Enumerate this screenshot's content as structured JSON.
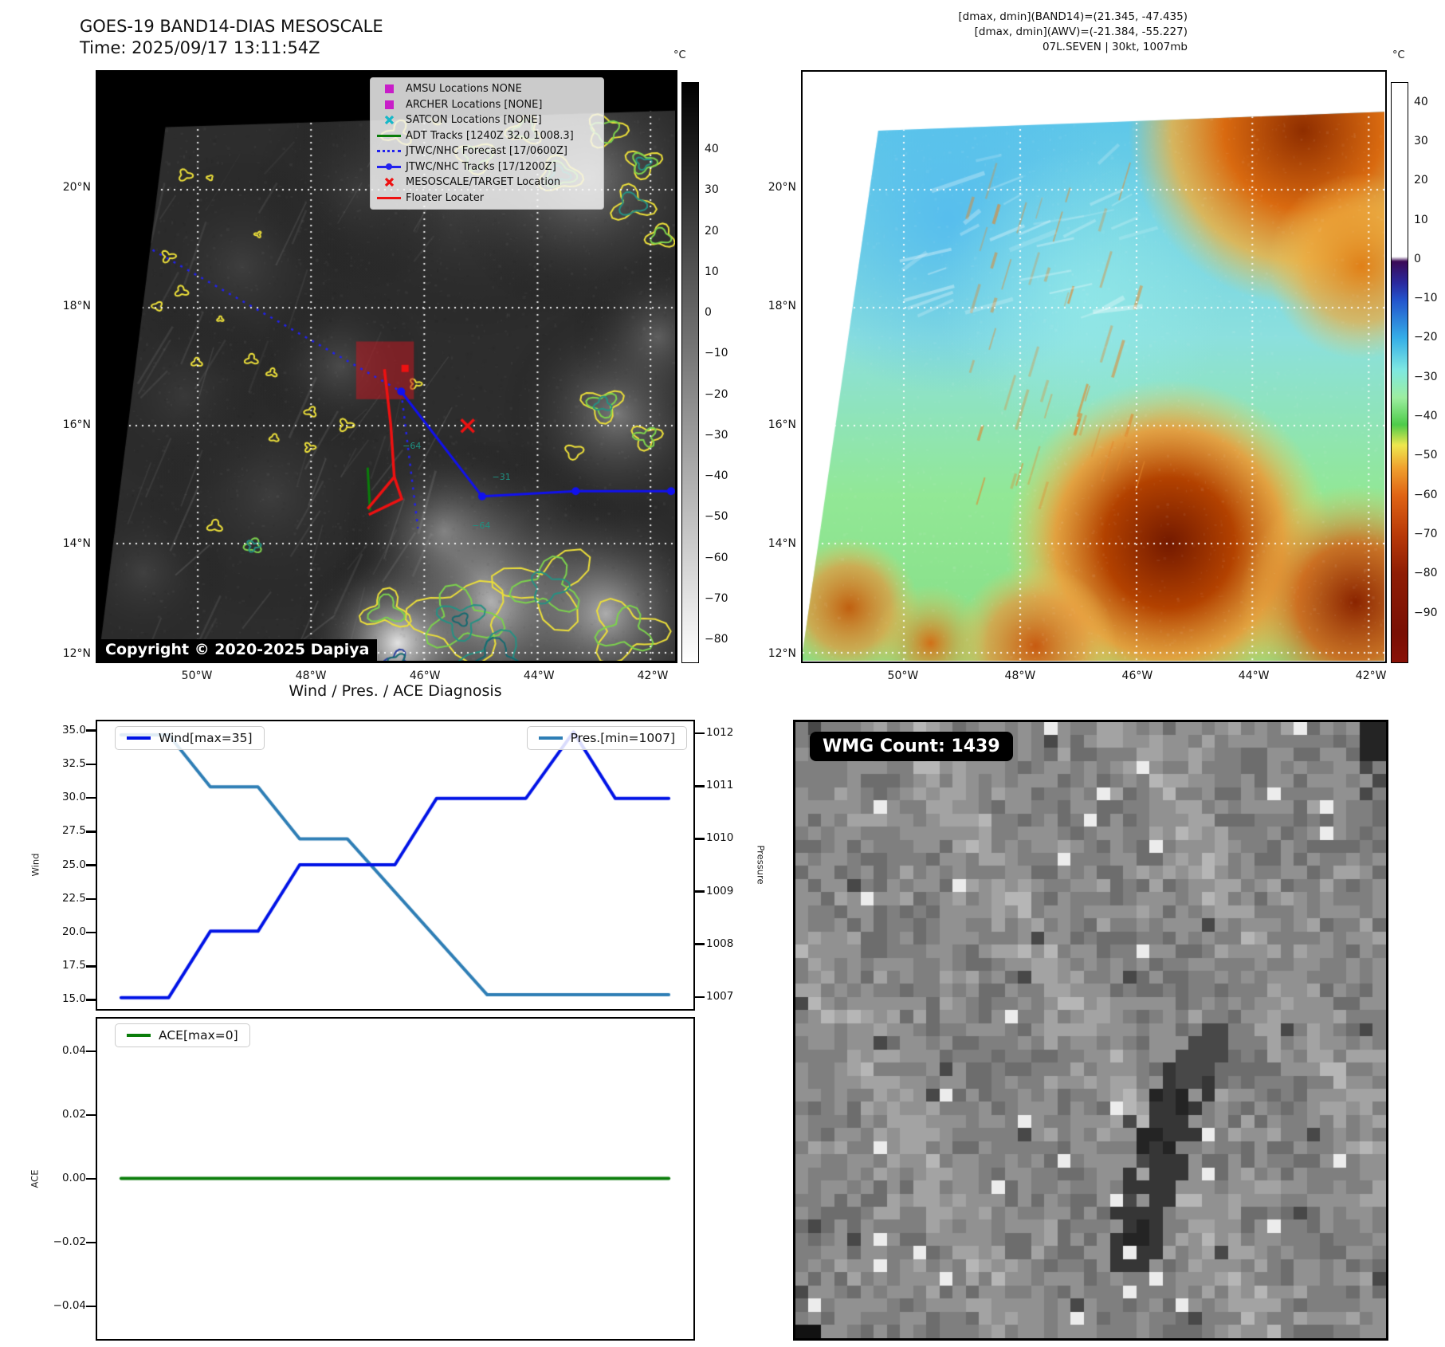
{
  "figure": {
    "title_line1": "GOES-19 BAND14-DIAS MESOSCALE",
    "title_line2": "Time: 2025/09/17 13:11:54Z",
    "info_line1": "[dmax, dmin](BAND14)=(21.345, -47.435)",
    "info_line2": "[dmax, dmin](AWV)=(-21.384, -55.227)",
    "info_line3": "07L.SEVEN | 30kt, 1007mb"
  },
  "band14_map": {
    "lat_ticks": [
      "20°N",
      "18°N",
      "16°N",
      "14°N",
      "12°N"
    ],
    "lon_ticks": [
      "50°W",
      "48°W",
      "46°W",
      "44°W",
      "42°W"
    ],
    "copyright": "Copyright © 2020-2025 Dapiya",
    "contour_labels": [
      {
        "text": "−64",
        "fx": 0.545,
        "fy": 0.637
      },
      {
        "text": "−64",
        "fx": 0.665,
        "fy": 0.772
      },
      {
        "text": "−31",
        "fx": 0.7,
        "fy": 0.69
      }
    ],
    "legend": [
      {
        "label": "AMSU Locations NONE",
        "marker": "square",
        "color": "#c81ec8"
      },
      {
        "label": "ARCHER Locations [NONE]",
        "marker": "square",
        "color": "#c81ec8"
      },
      {
        "label": "SATCON Locations [NONE]",
        "marker": "x",
        "color": "#16b8c8"
      },
      {
        "label": "ADT Tracks [1240Z 32.0 1008.3]",
        "marker": "line",
        "color": "#0a7d0a"
      },
      {
        "label": "JTWC/NHC Forecast [17/0600Z]",
        "marker": "dotted",
        "color": "#2222ee"
      },
      {
        "label": "JTWC/NHC Tracks [17/1200Z]",
        "marker": "line-dot",
        "color": "#2222ee"
      },
      {
        "label": "MESOSCALE/TARGET Location",
        "marker": "x",
        "color": "#ee1111"
      },
      {
        "label": "Floater Locater",
        "marker": "line",
        "color": "#ee1111"
      }
    ],
    "colorbar": {
      "unit": "°C",
      "ticks": [
        "40",
        "30",
        "20",
        "10",
        "0",
        "−10",
        "−20",
        "−30",
        "−40",
        "−50",
        "−60",
        "−70",
        "−80"
      ]
    }
  },
  "awv_map": {
    "lat_ticks": [
      "20°N",
      "18°N",
      "16°N",
      "14°N",
      "12°N"
    ],
    "lon_ticks": [
      "50°W",
      "48°W",
      "46°W",
      "44°W",
      "42°W"
    ],
    "colorbar": {
      "unit": "°C",
      "ticks": [
        "40",
        "30",
        "20",
        "10",
        "0",
        "−10",
        "−20",
        "−30",
        "−40",
        "−50",
        "−60",
        "−70",
        "−80",
        "−90"
      ]
    }
  },
  "wmg_panel": {
    "count_label": "WMG Count: 1439"
  },
  "chart_data": [
    {
      "type": "line",
      "title": "Wind / Pres. / ACE Diagnosis",
      "ylabel": "Wind",
      "y2label": "Pressure",
      "ylim": [
        14.2,
        35.8
      ],
      "y2lim": [
        1006.74,
        1012.26
      ],
      "yticks": [
        "35.0",
        "32.5",
        "30.0",
        "27.5",
        "25.0",
        "22.5",
        "20.0",
        "17.5",
        "15.0"
      ],
      "y2ticks": [
        "1012",
        "1011",
        "1010",
        "1009",
        "1008",
        "1007"
      ],
      "grid": false,
      "x_axis_labels": "none",
      "series": [
        {
          "name": "Wind[max=35]",
          "color": "#0013e6",
          "axis": "left",
          "legend_pos": "upper-left",
          "points": [
            [
              0.04,
              15
            ],
            [
              0.12,
              15
            ],
            [
              0.19,
              20
            ],
            [
              0.27,
              20
            ],
            [
              0.34,
              25
            ],
            [
              0.5,
              25
            ],
            [
              0.57,
              30
            ],
            [
              0.72,
              30
            ],
            [
              0.8,
              35
            ],
            [
              0.87,
              30
            ],
            [
              0.96,
              30
            ]
          ]
        },
        {
          "name": "Pres.[min=1007]",
          "color": "#2e7eb5",
          "axis": "right",
          "legend_pos": "upper-right",
          "points": [
            [
              0.04,
              1012
            ],
            [
              0.12,
              1012
            ],
            [
              0.19,
              1011
            ],
            [
              0.27,
              1011
            ],
            [
              0.34,
              1010
            ],
            [
              0.42,
              1010
            ],
            [
              0.655,
              1007
            ],
            [
              0.96,
              1007
            ]
          ]
        }
      ]
    },
    {
      "type": "line",
      "ylabel": "ACE",
      "ylim": [
        -0.0508,
        0.0508
      ],
      "yticks": [
        "0.04",
        "0.02",
        "0.00",
        "−0.02",
        "−0.04"
      ],
      "series": [
        {
          "name": "ACE[max=0]",
          "color": "#0a7d0a",
          "axis": "left",
          "legend_pos": "upper-left",
          "points": [
            [
              0.04,
              0
            ],
            [
              0.96,
              0
            ]
          ]
        }
      ]
    }
  ]
}
